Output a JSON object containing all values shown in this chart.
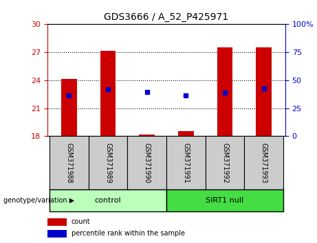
{
  "title": "GDS3666 / A_52_P425971",
  "categories": [
    "GSM371988",
    "GSM371989",
    "GSM371990",
    "GSM371991",
    "GSM371992",
    "GSM371993"
  ],
  "bar_bottoms": [
    18,
    18,
    18,
    18,
    18,
    18
  ],
  "bar_tops": [
    24.1,
    27.15,
    18.2,
    18.55,
    27.55,
    27.55
  ],
  "percentile_values_left": [
    22.35,
    23.0,
    22.75,
    22.35,
    22.65,
    23.1
  ],
  "ylim_left": [
    18,
    30
  ],
  "ylim_right": [
    0,
    100
  ],
  "yticks_left": [
    18,
    21,
    24,
    27,
    30
  ],
  "yticks_right": [
    0,
    25,
    50,
    75,
    100
  ],
  "ytick_labels_right": [
    "0",
    "25",
    "50",
    "75",
    "100%"
  ],
  "bar_color": "#cc0000",
  "point_color": "#0000cc",
  "grid_ticks": [
    21,
    24,
    27
  ],
  "control_label": "control",
  "sirt1_label": "SIRT1 null",
  "genotype_label": "genotype/variation",
  "legend_count": "count",
  "legend_percentile": "percentile rank within the sample",
  "bar_width": 0.4,
  "left_tick_color": "#cc0000",
  "right_tick_color": "#0000cc",
  "control_bg": "#bbffbb",
  "sirt1_bg": "#44dd44",
  "sample_label_bg": "#cccccc"
}
